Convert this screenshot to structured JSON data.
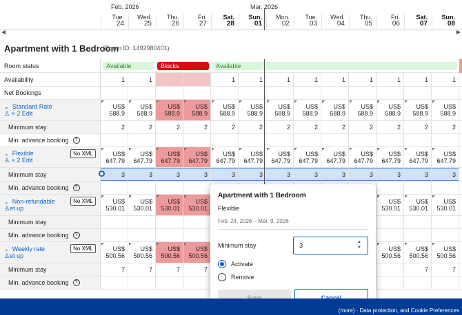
{
  "header": {
    "month_feb": "Feb. 2026",
    "month_mar": "Mar. 2026",
    "days": [
      {
        "dow": "Tue.",
        "num": "24",
        "bold": false
      },
      {
        "dow": "Wed.",
        "num": "25",
        "bold": false
      },
      {
        "dow": "Thu.",
        "num": "26",
        "bold": false
      },
      {
        "dow": "Fri.",
        "num": "27",
        "bold": false
      },
      {
        "dow": "Sat.",
        "num": "28",
        "bold": true
      },
      {
        "dow": "Sun.",
        "num": "01",
        "bold": true
      },
      {
        "dow": "Mon.",
        "num": "02",
        "bold": false
      },
      {
        "dow": "Tue.",
        "num": "03",
        "bold": false
      },
      {
        "dow": "Wed.",
        "num": "04",
        "bold": false
      },
      {
        "dow": "Thu.",
        "num": "05",
        "bold": false
      },
      {
        "dow": "Fri.",
        "num": "06",
        "bold": false
      },
      {
        "dow": "Sat.",
        "num": "07",
        "bold": true
      },
      {
        "dow": "Sun.",
        "num": "08",
        "bold": true
      }
    ]
  },
  "room": {
    "title": "Apartment with 1 Bedroom",
    "id_text": "(Room ID: 1492980401)"
  },
  "rows": {
    "room_status": "Room status",
    "status_available": "Available",
    "status_blocks": "Blocks",
    "availability": "Availability",
    "availability_values": [
      "1",
      "1",
      "",
      "",
      "1",
      "1",
      "1",
      "1",
      "1",
      "1",
      "1",
      "1",
      "1"
    ],
    "net_bookings": "Net Bookings",
    "minimum_stay": "Minimum stay",
    "min_advance": "Min. advance booking",
    "help_icon": "?",
    "no_xml": "No XML"
  },
  "rates": [
    {
      "name": "Standard Rate",
      "sub": "× 2 Edit",
      "currency": "US$",
      "price": "588.9",
      "min_stay": [
        "2",
        "2",
        "2",
        "2",
        "2",
        "2",
        "2",
        "2",
        "2",
        "2",
        "2",
        "2",
        "2"
      ],
      "no_xml": false
    },
    {
      "name": "Flexible",
      "sub": "× 2 Edit",
      "currency": "US$",
      "price": "647.79",
      "min_stay": [
        "3",
        "3",
        "3",
        "3",
        "3",
        "3",
        "3",
        "3",
        "3",
        "3",
        "3",
        "3",
        "3"
      ],
      "no_xml": true
    },
    {
      "name": "Non-refundable",
      "sub": "et up",
      "currency": "US$",
      "price": "530.01",
      "min_stay": [
        "",
        "",
        "",
        "",
        "",
        "",
        "",
        "",
        "",
        "",
        "",
        "",
        ""
      ],
      "no_xml": true
    },
    {
      "name": "Weekly rate",
      "sub": "et up",
      "currency": "US$",
      "price": "500.56",
      "min_stay": [
        "7",
        "7",
        "7",
        "7",
        "7",
        "",
        "",
        "",
        "",
        "",
        "",
        "7",
        "7"
      ],
      "no_xml": true
    }
  ],
  "popup": {
    "title": "Apartment with 1 Bedroom",
    "rate": "Flexible",
    "dates": "Feb. 24, 2026 – Mar. 9, 2026",
    "min_stay_label": "Minimum stay",
    "min_stay_value": "3",
    "activate": "Activate",
    "remove": "Remove",
    "save": "Save",
    "cancel": "Cancel"
  },
  "footer": {
    "text": "(more) · Data protection, and Cookie Preferences"
  }
}
